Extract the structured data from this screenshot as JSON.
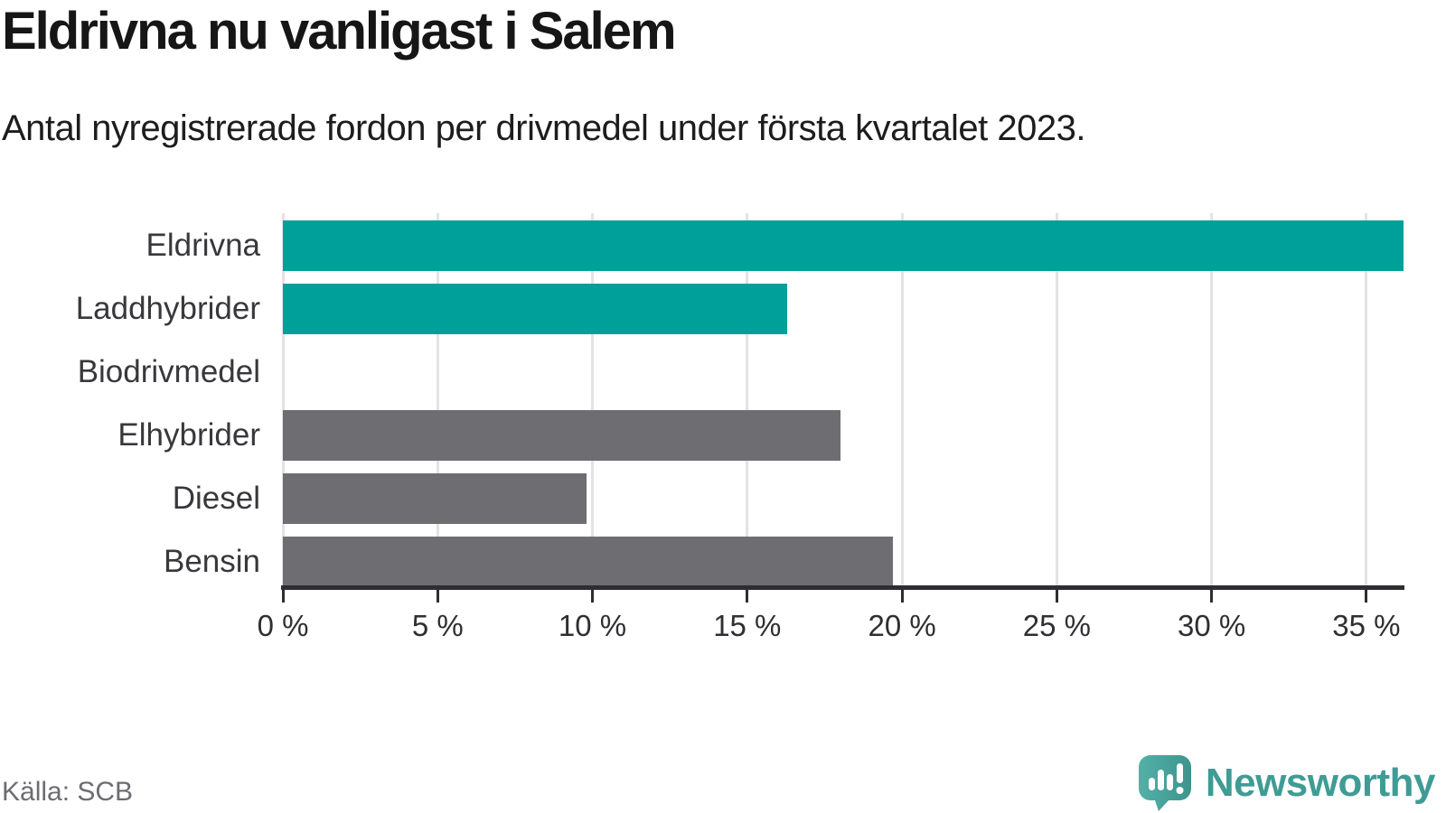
{
  "header": {
    "title": "Eldrivna nu vanligast i Salem",
    "subtitle": "Antal nyregistrerade fordon per drivmedel under första kvartalet 2023."
  },
  "chart_data": {
    "type": "bar",
    "orientation": "horizontal",
    "title": "Eldrivna nu vanligast i Salem",
    "subtitle": "Antal nyregistrerade fordon per drivmedel under första kvartalet 2023.",
    "categories": [
      "Eldrivna",
      "Laddhybrider",
      "Biodrivmedel",
      "Elhybrider",
      "Diesel",
      "Bensin"
    ],
    "values": [
      36.2,
      16.3,
      0,
      18.0,
      9.8,
      19.7
    ],
    "unit": "%",
    "xlim": [
      0,
      36.2
    ],
    "x_ticks": [
      0,
      5,
      10,
      15,
      20,
      25,
      30,
      35
    ],
    "x_tick_labels": [
      "0 %",
      "5 %",
      "10 %",
      "15 %",
      "20 %",
      "25 %",
      "30 %",
      "35 %"
    ],
    "grid": true,
    "legend": false,
    "series_colors": {
      "electric": "#00a09a",
      "fossil": "#6d6d72"
    },
    "bar_color_keys": [
      "electric",
      "electric",
      "electric",
      "fossil",
      "fossil",
      "fossil"
    ]
  },
  "footer": {
    "source": "Källa: SCB",
    "brand": "Newsworthy"
  },
  "icons": {
    "brand": "newsworthy-speech-bubble-chart-icon"
  },
  "colors": {
    "accent_teal": "#00a09a",
    "bar_gray": "#6d6d72",
    "grid": "#e3e3e3",
    "axis": "#2e2e32",
    "brand_teal": "#3f9c95",
    "title_text": "#161616",
    "source_text": "#6c6c71"
  }
}
